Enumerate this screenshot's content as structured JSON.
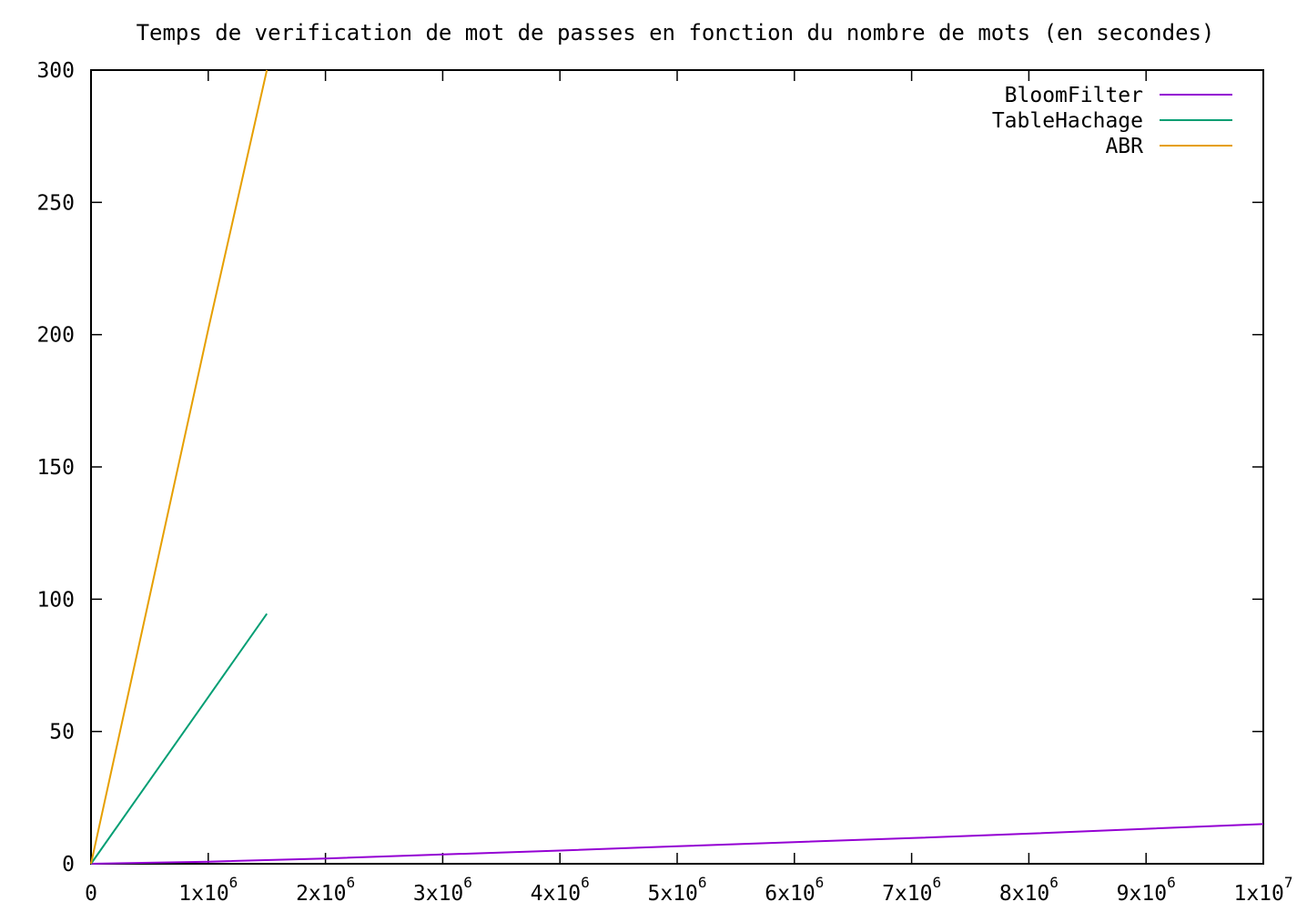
{
  "chart_data": {
    "type": "line",
    "title": "Temps de verification de mot de passes en fonction du nombre de mots (en secondes)",
    "xlabel": "",
    "ylabel": "",
    "xlim": [
      0,
      10000000
    ],
    "ylim": [
      0,
      300
    ],
    "grid": false,
    "legend_position": "top-right",
    "y_ticks": [
      {
        "value": 0,
        "label": "0"
      },
      {
        "value": 50,
        "label": "50"
      },
      {
        "value": 100,
        "label": "100"
      },
      {
        "value": 150,
        "label": "150"
      },
      {
        "value": 200,
        "label": "200"
      },
      {
        "value": 250,
        "label": "250"
      },
      {
        "value": 300,
        "label": "300"
      }
    ],
    "x_ticks": [
      {
        "value": 0,
        "base": "0",
        "exp": ""
      },
      {
        "value": 1000000,
        "base": "1x10",
        "exp": "6"
      },
      {
        "value": 2000000,
        "base": "2x10",
        "exp": "6"
      },
      {
        "value": 3000000,
        "base": "3x10",
        "exp": "6"
      },
      {
        "value": 4000000,
        "base": "4x10",
        "exp": "6"
      },
      {
        "value": 5000000,
        "base": "5x10",
        "exp": "6"
      },
      {
        "value": 6000000,
        "base": "6x10",
        "exp": "6"
      },
      {
        "value": 7000000,
        "base": "7x10",
        "exp": "6"
      },
      {
        "value": 8000000,
        "base": "8x10",
        "exp": "6"
      },
      {
        "value": 9000000,
        "base": "9x10",
        "exp": "6"
      },
      {
        "value": 10000000,
        "base": "1x10",
        "exp": "7"
      }
    ],
    "series": [
      {
        "name": "BloomFilter",
        "color": "#9400d3",
        "x": [
          0,
          1000000,
          2000000,
          3000000,
          4000000,
          5000000,
          6000000,
          7000000,
          8000000,
          9000000,
          10000000
        ],
        "y": [
          0,
          0.8,
          2.0,
          3.5,
          5.0,
          6.6,
          8.2,
          9.7,
          11.4,
          13.2,
          15.0
        ]
      },
      {
        "name": "TableHachage",
        "color": "#009e73",
        "x": [
          0,
          500000,
          1000000,
          1500000
        ],
        "y": [
          0,
          31.5,
          63.0,
          94.5
        ]
      },
      {
        "name": "ABR",
        "color": "#e69f00",
        "x": [
          0,
          500000,
          1000000,
          1500000
        ],
        "y": [
          0,
          101,
          202,
          300
        ]
      }
    ]
  }
}
